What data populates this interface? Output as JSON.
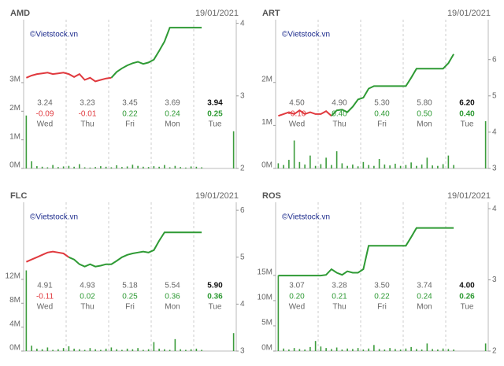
{
  "chart_data": [
    {
      "type": "line",
      "title": "AMD",
      "date": "19/01/2021",
      "watermark": "©Vietstock.vn",
      "ylim": [
        0,
        5200000
      ],
      "yticks": [
        {
          "value": 0,
          "label": "0M"
        },
        {
          "value": 1000000,
          "label": "1M"
        },
        {
          "value": 2000000,
          "label": "2M"
        },
        {
          "value": 3000000,
          "label": "3M"
        }
      ],
      "y2lim": [
        2,
        4.05
      ],
      "y2ticks": [
        2,
        3,
        4
      ],
      "series": [
        {
          "type": "line",
          "axis": "y2",
          "color": "#e0393e",
          "values": [
            3.25,
            3.28,
            3.3,
            3.31,
            3.32,
            3.3,
            3.31,
            3.32,
            3.3,
            3.26,
            3.3,
            3.22,
            3.25,
            3.2,
            3.22,
            3.24,
            3.25,
            null,
            null,
            null,
            null,
            null,
            null,
            null,
            null,
            null,
            null,
            null,
            null,
            null,
            null,
            null,
            null,
            null
          ]
        },
        {
          "type": "line",
          "axis": "y2",
          "color": "#2e9a34",
          "values": [
            null,
            null,
            null,
            null,
            null,
            null,
            null,
            null,
            null,
            null,
            null,
            null,
            null,
            null,
            null,
            null,
            3.25,
            3.33,
            3.38,
            3.42,
            3.45,
            3.47,
            3.44,
            3.46,
            3.5,
            3.62,
            3.75,
            3.94,
            3.94,
            3.94,
            3.94,
            3.94,
            3.94,
            3.94
          ]
        },
        {
          "type": "bar",
          "axis": "y",
          "color": "#3c9c3c",
          "values": [
            1850000,
            250000,
            80000,
            60000,
            40000,
            120000,
            50000,
            70000,
            90000,
            60000,
            150000,
            40000,
            30000,
            50000,
            80000,
            60000,
            40000,
            110000,
            50000,
            70000,
            130000,
            90000,
            60000,
            50000,
            80000,
            60000,
            120000,
            40000,
            90000,
            50000,
            30000,
            70000,
            60000,
            40000,
            null,
            null,
            null,
            null,
            null,
            1300000
          ]
        }
      ],
      "table": {
        "prices": [
          "3.24",
          "3.23",
          "3.45",
          "3.69",
          "3.94"
        ],
        "changes": [
          "-0.09",
          "-0.01",
          "0.22",
          "0.24",
          "0.25"
        ],
        "days": [
          "Wed",
          "Thu",
          "Fri",
          "Mon",
          "Tue"
        ]
      },
      "change_colors": {
        "up": "#2e9a34",
        "down": "#e0393e"
      }
    },
    {
      "type": "line",
      "title": "ART",
      "date": "19/01/2021",
      "watermark": "©Vietstock.vn",
      "ylim": [
        0,
        3460000
      ],
      "yticks": [
        {
          "value": 0,
          "label": "0M"
        },
        {
          "value": 1000000,
          "label": "1M"
        },
        {
          "value": 2000000,
          "label": "2M"
        }
      ],
      "y2lim": [
        3,
        7.1
      ],
      "y2ticks": [
        3,
        4,
        5,
        6
      ],
      "series": [
        {
          "type": "line",
          "axis": "y2",
          "color": "#e0393e",
          "values": [
            4.45,
            4.5,
            4.55,
            4.5,
            4.6,
            4.5,
            4.55,
            4.5,
            4.5,
            4.58,
            4.45,
            null,
            null,
            null,
            null,
            null,
            null,
            null,
            null,
            null,
            null,
            null,
            null,
            null,
            null,
            null,
            null,
            null,
            null,
            null,
            null,
            null,
            null,
            null
          ]
        },
        {
          "type": "line",
          "axis": "y2",
          "color": "#2e9a34",
          "values": [
            null,
            null,
            null,
            null,
            null,
            null,
            null,
            null,
            null,
            null,
            4.45,
            4.6,
            4.62,
            4.55,
            4.7,
            4.9,
            4.95,
            5.2,
            5.27,
            5.27,
            5.27,
            5.27,
            5.27,
            5.27,
            5.27,
            5.5,
            5.75,
            5.75,
            5.75,
            5.75,
            5.75,
            5.75,
            5.9,
            6.15
          ]
        },
        {
          "type": "bar",
          "axis": "y",
          "color": "#3c9c3c",
          "values": [
            120000,
            80000,
            200000,
            650000,
            150000,
            90000,
            300000,
            60000,
            100000,
            250000,
            80000,
            400000,
            120000,
            60000,
            90000,
            50000,
            150000,
            80000,
            60000,
            220000,
            90000,
            70000,
            110000,
            60000,
            80000,
            140000,
            60000,
            90000,
            250000,
            70000,
            60000,
            100000,
            300000,
            80000,
            null,
            null,
            null,
            null,
            null,
            1100000
          ]
        }
      ],
      "table": {
        "prices": [
          "4.50",
          "4.90",
          "5.30",
          "5.80",
          "6.20"
        ],
        "changes": [
          "-0.10",
          "0.40",
          "0.40",
          "0.50",
          "0.40"
        ],
        "days": [
          "Wed",
          "Thu",
          "Fri",
          "Mon",
          "Tue"
        ]
      },
      "change_colors": {
        "up": "#2e9a34",
        "down": "#e0393e"
      }
    },
    {
      "type": "line",
      "title": "FLC",
      "date": "19/01/2021",
      "watermark": "©Vietstock.vn",
      "ylim": [
        0,
        24900000
      ],
      "yticks": [
        {
          "value": 0,
          "label": "0M"
        },
        {
          "value": 4000000,
          "label": "4M"
        },
        {
          "value": 8000000,
          "label": "8M"
        },
        {
          "value": 12000000,
          "label": "12M"
        }
      ],
      "y2lim": [
        3,
        6.17
      ],
      "y2ticks": [
        3,
        4,
        5,
        6
      ],
      "series": [
        {
          "type": "line",
          "axis": "y2",
          "color": "#e0393e",
          "values": [
            4.9,
            4.95,
            5.0,
            5.05,
            5.1,
            5.12,
            5.1,
            5.08,
            5.0,
            null,
            null,
            null,
            null,
            null,
            null,
            null,
            null,
            null,
            null,
            null,
            null,
            null,
            null,
            null,
            null,
            null,
            null,
            null,
            null,
            null,
            null,
            null,
            null,
            null
          ]
        },
        {
          "type": "line",
          "axis": "y2",
          "color": "#2e9a34",
          "values": [
            null,
            null,
            null,
            null,
            null,
            null,
            null,
            null,
            5.0,
            4.95,
            4.85,
            4.8,
            4.85,
            4.8,
            4.82,
            4.85,
            4.85,
            4.92,
            5.0,
            5.05,
            5.08,
            5.1,
            5.12,
            5.1,
            5.15,
            5.35,
            5.53,
            5.53,
            5.53,
            5.53,
            5.53,
            5.53,
            5.53,
            5.53
          ]
        },
        {
          "type": "bar",
          "axis": "y",
          "color": "#3c9c3c",
          "values": [
            13500000,
            900000,
            400000,
            300000,
            600000,
            200000,
            300000,
            500000,
            800000,
            400000,
            300000,
            200000,
            500000,
            300000,
            200000,
            400000,
            600000,
            300000,
            200000,
            400000,
            300000,
            500000,
            200000,
            300000,
            1500000,
            400000,
            300000,
            200000,
            2000000,
            300000,
            200000,
            300000,
            400000,
            200000,
            null,
            null,
            null,
            null,
            null,
            3000000
          ]
        }
      ],
      "table": {
        "prices": [
          "4.91",
          "4.93",
          "5.18",
          "5.54",
          "5.90"
        ],
        "changes": [
          "-0.11",
          "0.02",
          "0.25",
          "0.36",
          "0.36"
        ],
        "days": [
          "Wed",
          "Thu",
          "Fri",
          "Mon",
          "Tue"
        ]
      },
      "change_colors": {
        "up": "#2e9a34",
        "down": "#e0393e"
      }
    },
    {
      "type": "line",
      "title": "ROS",
      "date": "19/01/2021",
      "watermark": "©Vietstock.vn",
      "ylim": [
        0,
        29500000
      ],
      "yticks": [
        {
          "value": 0,
          "label": "0M"
        },
        {
          "value": 5000000,
          "label": "5M"
        },
        {
          "value": 10000000,
          "label": "10M"
        },
        {
          "value": 15000000,
          "label": "15M"
        }
      ],
      "y2lim": [
        2,
        4.09
      ],
      "y2ticks": [
        2,
        3,
        4
      ],
      "series": [
        {
          "type": "line",
          "axis": "y2",
          "color": "#2e9a34",
          "values": [
            3.06,
            3.06,
            3.06,
            3.06,
            3.06,
            3.06,
            3.06,
            3.06,
            3.06,
            3.07,
            3.15,
            3.1,
            3.07,
            3.12,
            3.1,
            3.1,
            3.15,
            3.48,
            3.48,
            3.48,
            3.48,
            3.48,
            3.48,
            3.48,
            3.48,
            3.6,
            3.73,
            3.73,
            3.73,
            3.73,
            3.73,
            3.73,
            3.73,
            3.73
          ]
        },
        {
          "type": "bar",
          "axis": "y",
          "color": "#3c9c3c",
          "values": [
            15000000,
            500000,
            300000,
            600000,
            400000,
            300000,
            800000,
            2000000,
            900000,
            600000,
            400000,
            700000,
            300000,
            500000,
            400000,
            600000,
            300000,
            500000,
            1200000,
            400000,
            300000,
            600000,
            400000,
            300000,
            500000,
            800000,
            400000,
            300000,
            1500000,
            400000,
            300000,
            500000,
            400000,
            300000,
            null,
            null,
            null,
            null,
            null,
            1500000
          ]
        }
      ],
      "table": {
        "prices": [
          "3.07",
          "3.28",
          "3.50",
          "3.74",
          "4.00"
        ],
        "changes": [
          "0.20",
          "0.21",
          "0.22",
          "0.24",
          "0.26"
        ],
        "days": [
          "Wed",
          "Thu",
          "Fri",
          "Mon",
          "Tue"
        ]
      },
      "change_colors": {
        "up": "#2e9a34",
        "down": "#e0393e"
      }
    }
  ]
}
